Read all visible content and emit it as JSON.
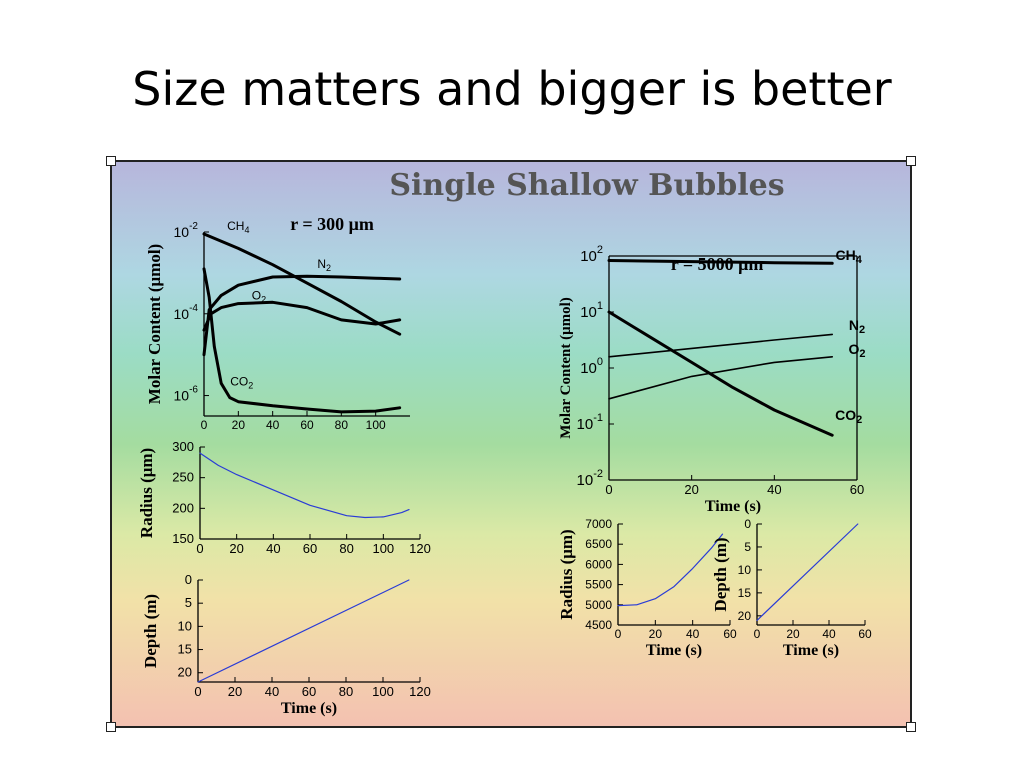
{
  "slide_title": "Size matters and bigger is better",
  "figure_title": "Single Shallow Bubbles",
  "colors": {
    "frame": "#222222",
    "curve": "#000000",
    "blue_curve": "#2a3cd6"
  },
  "chart_data": [
    {
      "id": "molar300",
      "type": "line",
      "title": "r = 300 μm",
      "xlabel": "",
      "ylabel": "Molar Content (μmol)",
      "ylog": true,
      "xlim": [
        0,
        120
      ],
      "ylim": [
        -6.5,
        -2
      ],
      "x_ticks": [
        "0",
        "20",
        "40",
        "60",
        "80",
        "100"
      ],
      "x_tick_values": [
        0,
        20,
        40,
        60,
        80,
        100
      ],
      "y_tick_values": [
        -6,
        -4,
        -2
      ],
      "y_tick_base": "10",
      "y_tick_exp": [
        "-6",
        "-4",
        "-2"
      ],
      "series": [
        {
          "name": "CH4",
          "sub": "4",
          "label": "CH",
          "x": [
            0,
            20,
            40,
            60,
            80,
            100,
            114
          ],
          "y": [
            -2.05,
            -2.4,
            -2.8,
            -3.25,
            -3.7,
            -4.2,
            -4.5
          ]
        },
        {
          "name": "N2",
          "sub": "2",
          "label": "N",
          "x": [
            0,
            3,
            10,
            20,
            40,
            60,
            80,
            100,
            114
          ],
          "y": [
            -5.0,
            -3.9,
            -3.55,
            -3.3,
            -3.1,
            -3.08,
            -3.1,
            -3.13,
            -3.15
          ]
        },
        {
          "name": "O2",
          "sub": "2",
          "label": "O",
          "x": [
            0,
            4,
            10,
            20,
            40,
            60,
            80,
            100,
            114
          ],
          "y": [
            -4.4,
            -4.0,
            -3.85,
            -3.75,
            -3.72,
            -3.85,
            -4.15,
            -4.25,
            -4.15
          ]
        },
        {
          "name": "CO2",
          "sub": "2",
          "label": "CO",
          "x": [
            0,
            3,
            6,
            10,
            15,
            20,
            40,
            60,
            80,
            100,
            114
          ],
          "y": [
            -2.9,
            -3.6,
            -4.8,
            -5.7,
            -6.05,
            -6.15,
            -6.25,
            -6.33,
            -6.4,
            -6.38,
            -6.3
          ]
        }
      ],
      "label_pos": [
        [
          20,
          -1.95
        ],
        [
          70,
          -2.88
        ],
        [
          32,
          -3.65
        ],
        [
          22,
          -5.75
        ]
      ]
    },
    {
      "id": "radius300",
      "type": "line",
      "xlabel": "",
      "ylabel": "Radius (μm)",
      "xlim": [
        0,
        120
      ],
      "ylim": [
        150,
        300
      ],
      "x_ticks": [
        "0",
        "20",
        "40",
        "60",
        "80",
        "100",
        "120"
      ],
      "x_tick_values": [
        0,
        20,
        40,
        60,
        80,
        100,
        120
      ],
      "y_ticks": [
        "150",
        "200",
        "250",
        "300"
      ],
      "y_tick_values": [
        150,
        200,
        250,
        300
      ],
      "series": [
        {
          "x": [
            0,
            10,
            20,
            40,
            60,
            80,
            90,
            100,
            110,
            114
          ],
          "y": [
            290,
            270,
            255,
            230,
            205,
            188,
            185,
            186,
            193,
            198
          ]
        }
      ]
    },
    {
      "id": "depth300",
      "type": "line",
      "xlabel": "Time (s)",
      "ylabel": "Depth (m)",
      "yreverse": true,
      "xlim": [
        0,
        120
      ],
      "ylim": [
        0,
        22
      ],
      "x_ticks": [
        "0",
        "20",
        "40",
        "60",
        "80",
        "100",
        "120"
      ],
      "x_tick_values": [
        0,
        20,
        40,
        60,
        80,
        100,
        120
      ],
      "y_ticks": [
        "0",
        "5",
        "10",
        "15",
        "20"
      ],
      "y_tick_values": [
        0,
        5,
        10,
        15,
        20
      ],
      "series": [
        {
          "x": [
            0,
            114
          ],
          "y": [
            22,
            0
          ]
        }
      ]
    },
    {
      "id": "molar5000",
      "type": "line",
      "title": "r = 5000 μm",
      "xlabel": "Time (s)",
      "ylabel": "Molar Content (μmol)",
      "ylog": true,
      "xlim": [
        0,
        60
      ],
      "ylim": [
        -2,
        2
      ],
      "x_ticks": [
        "0",
        "20",
        "40",
        "60"
      ],
      "x_tick_values": [
        0,
        20,
        40,
        60
      ],
      "y_tick_values": [
        -2,
        -1,
        0,
        1,
        2
      ],
      "y_tick_base": "10",
      "y_tick_exp": [
        "-2",
        "-1",
        "0",
        "1",
        "2"
      ],
      "series": [
        {
          "name": "CH4",
          "sub": "4",
          "label": "CH",
          "x": [
            0,
            20,
            40,
            54
          ],
          "y": [
            1.92,
            1.9,
            1.88,
            1.87
          ]
        },
        {
          "name": "N2",
          "sub": "2",
          "label": "N",
          "x": [
            0,
            20,
            40,
            54
          ],
          "y": [
            0.2,
            0.35,
            0.5,
            0.6
          ]
        },
        {
          "name": "O2",
          "sub": "2",
          "label": "O",
          "x": [
            0,
            20,
            40,
            54
          ],
          "y": [
            -0.55,
            -0.15,
            0.1,
            0.2
          ]
        },
        {
          "name": "CO2",
          "sub": "2",
          "label": "CO",
          "x": [
            0,
            10,
            20,
            30,
            40,
            54
          ],
          "y": [
            1.0,
            0.55,
            0.1,
            -0.35,
            -0.75,
            -1.2
          ]
        }
      ],
      "label_pos": [
        [
          58,
          1.93
        ],
        [
          60,
          0.68
        ],
        [
          60,
          0.25
        ],
        [
          58,
          -0.93
        ]
      ]
    },
    {
      "id": "radius5000",
      "type": "line",
      "xlabel": "Time (s)",
      "ylabel": "Radius (μm)",
      "xlim": [
        0,
        60
      ],
      "ylim": [
        4500,
        7000
      ],
      "x_ticks": [
        "0",
        "20",
        "40",
        "60"
      ],
      "x_tick_values": [
        0,
        20,
        40,
        60
      ],
      "y_ticks": [
        "4500",
        "5000",
        "5500",
        "6000",
        "6500",
        "7000"
      ],
      "y_tick_values": [
        4500,
        5000,
        5500,
        6000,
        6500,
        7000
      ],
      "series": [
        {
          "x": [
            0,
            10,
            20,
            30,
            40,
            50,
            56
          ],
          "y": [
            4980,
            5000,
            5150,
            5450,
            5900,
            6400,
            6750
          ]
        }
      ]
    },
    {
      "id": "depth5000",
      "type": "line",
      "xlabel": "Time (s)",
      "ylabel": "Depth (m)",
      "yreverse": true,
      "xlim": [
        0,
        60
      ],
      "ylim": [
        0,
        22
      ],
      "x_ticks": [
        "0",
        "20",
        "40",
        "60"
      ],
      "x_tick_values": [
        0,
        20,
        40,
        60
      ],
      "y_ticks": [
        "0",
        "5",
        "10",
        "15",
        "20"
      ],
      "y_tick_values": [
        0,
        5,
        10,
        15,
        20
      ],
      "series": [
        {
          "x": [
            0,
            56
          ],
          "y": [
            21,
            0
          ]
        }
      ]
    }
  ]
}
